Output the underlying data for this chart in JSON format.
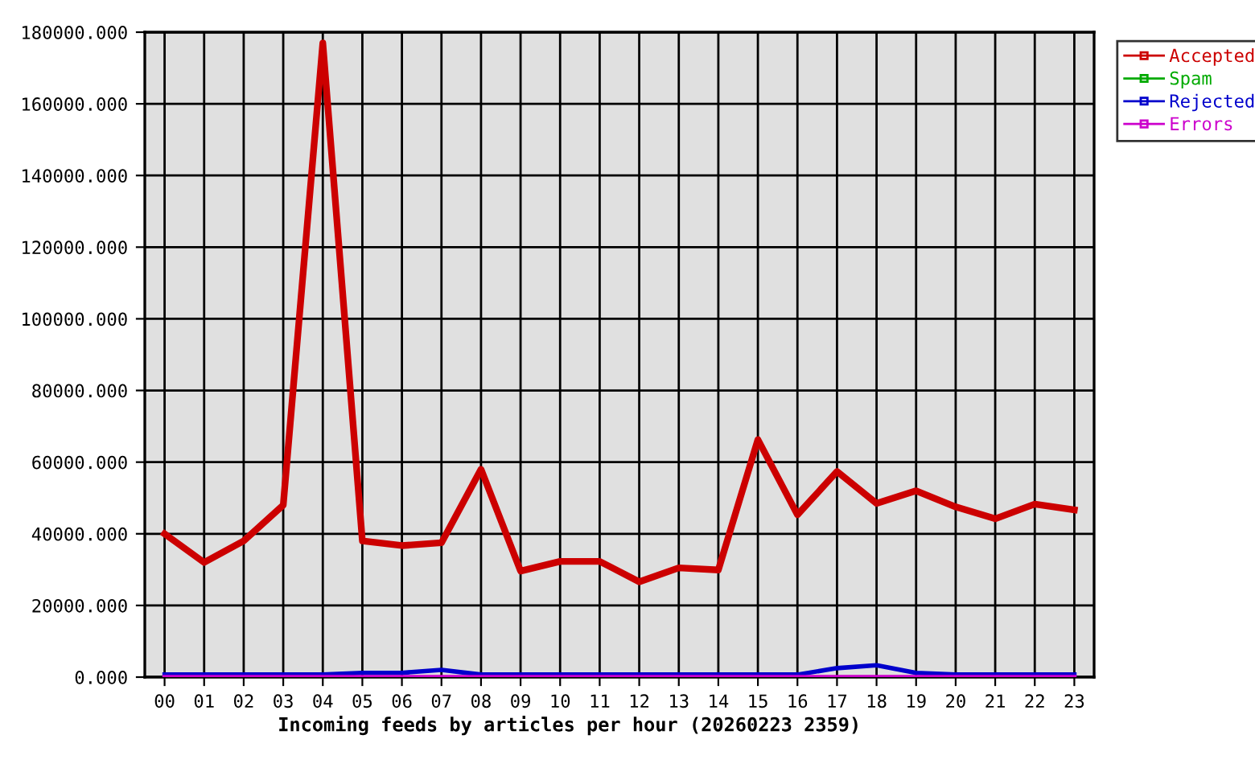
{
  "chart_data": {
    "type": "line",
    "xlabel": "Incoming feeds by articles per hour (20260223 2359)",
    "categories": [
      "00",
      "01",
      "02",
      "03",
      "04",
      "05",
      "06",
      "07",
      "08",
      "09",
      "10",
      "11",
      "12",
      "13",
      "14",
      "15",
      "16",
      "17",
      "18",
      "19",
      "20",
      "21",
      "22",
      "23"
    ],
    "series": [
      {
        "name": "Accepted",
        "color": "#cc0000",
        "values": [
          40000,
          32000,
          38000,
          48000,
          177000,
          38000,
          36700,
          37500,
          58000,
          29600,
          32300,
          32300,
          26600,
          30500,
          29900,
          66300,
          45300,
          57400,
          48500,
          52000,
          47500,
          44200,
          48300,
          46700
        ]
      },
      {
        "name": "Spam",
        "color": "#00aa00",
        "values": [
          null,
          null,
          null,
          null,
          null,
          null,
          null,
          null,
          null,
          null,
          null,
          null,
          null,
          null,
          null,
          null,
          null,
          null,
          null,
          null,
          null,
          null,
          null,
          null
        ]
      },
      {
        "name": "Rejected",
        "color": "#0000cc",
        "values": [
          700,
          700,
          700,
          700,
          700,
          1200,
          1200,
          2000,
          700,
          700,
          700,
          700,
          700,
          700,
          700,
          700,
          700,
          2500,
          3300,
          1200,
          700,
          700,
          700,
          700
        ]
      },
      {
        "name": "Errors",
        "color": "#cc00cc",
        "values": [
          0,
          0,
          0,
          0,
          0,
          0,
          0,
          0,
          0,
          0,
          0,
          0,
          0,
          0,
          0,
          0,
          0,
          0,
          0,
          0,
          0,
          0,
          0,
          0
        ]
      }
    ],
    "ylim": [
      0,
      180000
    ],
    "yticks": [
      {
        "value": 0,
        "label": "0.000"
      },
      {
        "value": 20000,
        "label": "20000.000"
      },
      {
        "value": 40000,
        "label": "40000.000"
      },
      {
        "value": 60000,
        "label": "60000.000"
      },
      {
        "value": 80000,
        "label": "80000.000"
      },
      {
        "value": 100000,
        "label": "100000.000"
      },
      {
        "value": 120000,
        "label": "120000.000"
      },
      {
        "value": 140000,
        "label": "140000.000"
      },
      {
        "value": 160000,
        "label": "160000.000"
      },
      {
        "value": 180000,
        "label": "180000.000"
      }
    ],
    "grid": true,
    "legend": "top right",
    "line_style": "solid"
  }
}
